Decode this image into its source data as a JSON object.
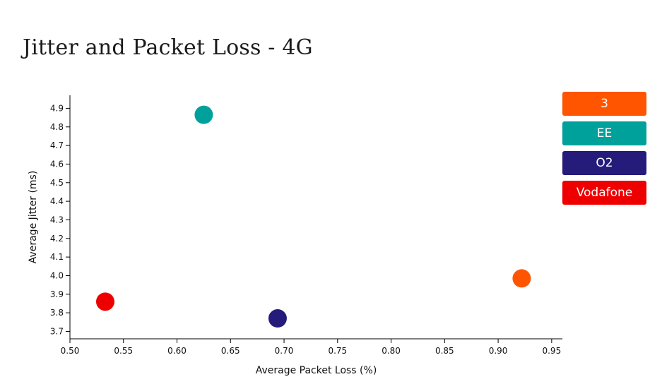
{
  "chart_data": {
    "type": "scatter",
    "title": "Jitter and Packet Loss - 4G",
    "xlabel": "Average Packet Loss (%)",
    "ylabel": "Average Jitter (ms)",
    "xlim": [
      0.5,
      0.96
    ],
    "ylim": [
      3.66,
      4.97
    ],
    "xticks": [
      "0.50",
      "0.55",
      "0.60",
      "0.65",
      "0.70",
      "0.75",
      "0.80",
      "0.85",
      "0.90",
      "0.95"
    ],
    "yticks": [
      "3.7",
      "3.8",
      "3.9",
      "4.0",
      "4.1",
      "4.2",
      "4.3",
      "4.4",
      "4.5",
      "4.6",
      "4.7",
      "4.8",
      "4.9"
    ],
    "grid": false,
    "legend_position": "right",
    "series": [
      {
        "name": "3",
        "color": "#ff5500",
        "x": 0.922,
        "y": 3.985
      },
      {
        "name": "EE",
        "color": "#00a19a",
        "x": 0.625,
        "y": 4.865
      },
      {
        "name": "O2",
        "color": "#241b7a",
        "x": 0.694,
        "y": 3.77
      },
      {
        "name": "Vodafone",
        "color": "#ee0000",
        "x": 0.533,
        "y": 3.86
      }
    ]
  }
}
